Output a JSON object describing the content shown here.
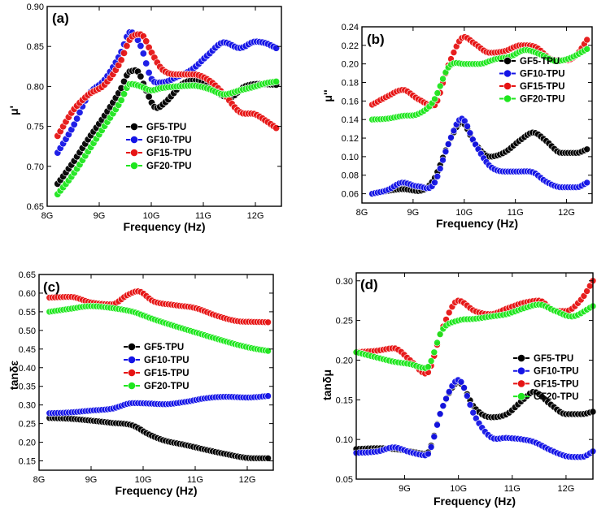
{
  "colors": {
    "GF5-TPU": "#000000",
    "GF10-TPU": "#1414e6",
    "GF15-TPU": "#e61414",
    "GF20-TPU": "#1ee61e"
  },
  "chart_data": [
    {
      "type": "line",
      "panel": "(a)",
      "title": "",
      "xlabel": "Frequency (Hz)",
      "ylabel": "μ'",
      "xlim": [
        8.0,
        12.5
      ],
      "ylim": [
        0.65,
        0.9
      ],
      "xticks": [
        8,
        9,
        10,
        11,
        12
      ],
      "xtick_labels": [
        "8G",
        "9G",
        "10G",
        "11G",
        "12G"
      ],
      "yticks": [
        0.65,
        0.7,
        0.75,
        0.8,
        0.85,
        0.9
      ],
      "ytick_labels": [
        "0.65",
        "0.70",
        "0.75",
        "0.80",
        "0.85",
        "0.90"
      ],
      "legend": [
        "GF5-TPU",
        "GF10-TPU",
        "GF15-TPU",
        "GF20-TPU"
      ],
      "legend_position": "center-left",
      "series": [
        {
          "name": "GF5-TPU",
          "x": [
            8.2,
            8.5,
            8.8,
            9.1,
            9.4,
            9.6,
            9.75,
            9.9,
            10.1,
            10.3,
            10.6,
            10.9,
            11.2,
            11.5,
            11.8,
            12.1,
            12.4
          ],
          "y": [
            0.678,
            0.705,
            0.735,
            0.763,
            0.795,
            0.819,
            0.818,
            0.795,
            0.773,
            0.782,
            0.803,
            0.808,
            0.795,
            0.786,
            0.8,
            0.803,
            0.802
          ]
        },
        {
          "name": "GF10-TPU",
          "x": [
            8.2,
            8.5,
            8.8,
            9.1,
            9.4,
            9.6,
            9.8,
            10.0,
            10.2,
            10.5,
            10.8,
            11.1,
            11.4,
            11.7,
            12.0,
            12.2,
            12.4
          ],
          "y": [
            0.717,
            0.75,
            0.79,
            0.808,
            0.84,
            0.868,
            0.85,
            0.81,
            0.805,
            0.812,
            0.822,
            0.84,
            0.855,
            0.848,
            0.856,
            0.854,
            0.848
          ]
        },
        {
          "name": "GF15-TPU",
          "x": [
            8.2,
            8.5,
            8.8,
            9.1,
            9.4,
            9.6,
            9.8,
            10.0,
            10.2,
            10.5,
            10.8,
            11.1,
            11.4,
            11.7,
            12.0,
            12.2,
            12.4
          ],
          "y": [
            0.738,
            0.77,
            0.79,
            0.802,
            0.83,
            0.86,
            0.865,
            0.843,
            0.822,
            0.815,
            0.815,
            0.808,
            0.79,
            0.768,
            0.765,
            0.757,
            0.748
          ]
        },
        {
          "name": "GF20-TPU",
          "x": [
            8.2,
            8.5,
            8.8,
            9.1,
            9.4,
            9.6,
            9.8,
            10.0,
            10.2,
            10.5,
            10.8,
            11.1,
            11.4,
            11.7,
            12.0,
            12.2,
            12.4
          ],
          "y": [
            0.665,
            0.69,
            0.72,
            0.75,
            0.78,
            0.803,
            0.8,
            0.795,
            0.798,
            0.8,
            0.801,
            0.797,
            0.79,
            0.795,
            0.8,
            0.804,
            0.806
          ]
        }
      ]
    },
    {
      "type": "line",
      "panel": "(b)",
      "title": "",
      "xlabel": "Frequency (Hz)",
      "ylabel": "μ''",
      "xlim": [
        8.0,
        12.5
      ],
      "ylim": [
        0.05,
        0.24
      ],
      "xticks": [
        8,
        9,
        10,
        11,
        12
      ],
      "xtick_labels": [
        "8G",
        "9G",
        "10G",
        "11G",
        "12G"
      ],
      "yticks": [
        0.06,
        0.08,
        0.1,
        0.12,
        0.14,
        0.16,
        0.18,
        0.2,
        0.22,
        0.24
      ],
      "ytick_labels": [
        "0.06",
        "0.08",
        "0.10",
        "0.12",
        "0.14",
        "0.16",
        "0.18",
        "0.20",
        "0.22",
        "0.24"
      ],
      "legend": [
        "GF5-TPU",
        "GF10-TPU",
        "GF15-TPU",
        "GF20-TPU"
      ],
      "legend_position": "center-right",
      "series": [
        {
          "name": "GF5-TPU",
          "x": [
            8.2,
            8.5,
            8.8,
            9.1,
            9.4,
            9.7,
            9.95,
            10.2,
            10.5,
            10.8,
            11.1,
            11.35,
            11.6,
            11.9,
            12.2,
            12.4
          ],
          "y": [
            0.06,
            0.063,
            0.065,
            0.063,
            0.075,
            0.115,
            0.137,
            0.115,
            0.1,
            0.105,
            0.118,
            0.126,
            0.117,
            0.104,
            0.104,
            0.108
          ]
        },
        {
          "name": "GF10-TPU",
          "x": [
            8.2,
            8.5,
            8.8,
            9.1,
            9.4,
            9.7,
            9.95,
            10.2,
            10.5,
            10.8,
            11.1,
            11.35,
            11.6,
            11.9,
            12.2,
            12.4
          ],
          "y": [
            0.06,
            0.064,
            0.072,
            0.068,
            0.07,
            0.115,
            0.141,
            0.115,
            0.09,
            0.084,
            0.084,
            0.083,
            0.073,
            0.067,
            0.067,
            0.072
          ]
        },
        {
          "name": "GF15-TPU",
          "x": [
            8.2,
            8.5,
            8.8,
            9.1,
            9.4,
            9.7,
            10.0,
            10.2,
            10.5,
            10.8,
            11.1,
            11.4,
            11.7,
            12.0,
            12.2,
            12.4
          ],
          "y": [
            0.156,
            0.165,
            0.172,
            0.162,
            0.155,
            0.2,
            0.229,
            0.222,
            0.212,
            0.214,
            0.22,
            0.218,
            0.205,
            0.204,
            0.21,
            0.226
          ]
        },
        {
          "name": "GF20-TPU",
          "x": [
            8.2,
            8.5,
            8.8,
            9.1,
            9.4,
            9.7,
            10.0,
            10.3,
            10.6,
            10.9,
            11.2,
            11.5,
            11.8,
            12.1,
            12.4
          ],
          "y": [
            0.14,
            0.141,
            0.144,
            0.146,
            0.16,
            0.197,
            0.2,
            0.2,
            0.205,
            0.208,
            0.215,
            0.21,
            0.203,
            0.207,
            0.216
          ]
        }
      ]
    },
    {
      "type": "line",
      "panel": "(c)",
      "title": "",
      "xlabel": "Frequency (Hz)",
      "ylabel": "tanδε",
      "xlim": [
        8.0,
        12.5
      ],
      "ylim": [
        0.125,
        0.65
      ],
      "xticks": [
        8,
        9,
        10,
        11,
        12
      ],
      "xtick_labels": [
        "8G",
        "9G",
        "10G",
        "11G",
        "12G"
      ],
      "yticks": [
        0.15,
        0.2,
        0.25,
        0.3,
        0.35,
        0.4,
        0.45,
        0.5,
        0.55,
        0.6,
        0.65
      ],
      "ytick_labels": [
        "0.15",
        "0.20",
        "0.25",
        "0.30",
        "0.35",
        "0.40",
        "0.45",
        "0.50",
        "0.55",
        "0.60",
        "0.65"
      ],
      "legend": [
        "GF5-TPU",
        "GF10-TPU",
        "GF15-TPU",
        "GF20-TPU"
      ],
      "legend_position": "center",
      "series": [
        {
          "name": "GF5-TPU",
          "x": [
            8.2,
            8.6,
            9.0,
            9.4,
            9.8,
            10.1,
            10.4,
            10.8,
            11.2,
            11.6,
            12.0,
            12.4
          ],
          "y": [
            0.265,
            0.263,
            0.258,
            0.252,
            0.245,
            0.222,
            0.205,
            0.193,
            0.18,
            0.168,
            0.158,
            0.157
          ]
        },
        {
          "name": "GF10-TPU",
          "x": [
            8.2,
            8.6,
            9.0,
            9.4,
            9.8,
            10.1,
            10.4,
            10.8,
            11.2,
            11.6,
            12.0,
            12.4
          ],
          "y": [
            0.278,
            0.28,
            0.285,
            0.29,
            0.305,
            0.304,
            0.302,
            0.308,
            0.318,
            0.322,
            0.32,
            0.324
          ]
        },
        {
          "name": "GF15-TPU",
          "x": [
            8.2,
            8.6,
            9.0,
            9.4,
            9.7,
            9.9,
            10.2,
            10.6,
            11.0,
            11.4,
            11.8,
            12.1,
            12.4
          ],
          "y": [
            0.588,
            0.59,
            0.575,
            0.57,
            0.595,
            0.605,
            0.578,
            0.568,
            0.56,
            0.54,
            0.525,
            0.523,
            0.522
          ]
        },
        {
          "name": "GF20-TPU",
          "x": [
            8.2,
            8.6,
            9.0,
            9.4,
            9.8,
            10.2,
            10.6,
            11.0,
            11.4,
            11.8,
            12.1,
            12.4
          ],
          "y": [
            0.55,
            0.558,
            0.565,
            0.56,
            0.55,
            0.53,
            0.512,
            0.495,
            0.478,
            0.462,
            0.452,
            0.445
          ]
        }
      ]
    },
    {
      "type": "line",
      "panel": "(d)",
      "title": "",
      "xlabel": "Frequency (Hz)",
      "ylabel": "tanδμ",
      "xlim": [
        8.1,
        12.5
      ],
      "ylim": [
        0.05,
        0.31
      ],
      "xticks": [
        9,
        10,
        11,
        12
      ],
      "xtick_labels": [
        "9G",
        "10G",
        "11G",
        "12G"
      ],
      "yticks": [
        0.05,
        0.1,
        0.15,
        0.2,
        0.25,
        0.3
      ],
      "ytick_labels": [
        "0.05",
        "0.10",
        "0.15",
        "0.20",
        "0.25",
        "0.30"
      ],
      "legend": [
        "GF5-TPU",
        "GF10-TPU",
        "GF15-TPU",
        "GF20-TPU"
      ],
      "legend_position": "center-right",
      "series": [
        {
          "name": "GF5-TPU",
          "x": [
            8.1,
            8.5,
            8.8,
            9.1,
            9.4,
            9.7,
            10.0,
            10.3,
            10.6,
            10.9,
            11.2,
            11.4,
            11.7,
            12.0,
            12.3,
            12.5
          ],
          "y": [
            0.088,
            0.089,
            0.088,
            0.085,
            0.082,
            0.14,
            0.172,
            0.14,
            0.128,
            0.132,
            0.15,
            0.16,
            0.145,
            0.132,
            0.132,
            0.135
          ]
        },
        {
          "name": "GF10-TPU",
          "x": [
            8.1,
            8.5,
            8.8,
            9.1,
            9.4,
            9.7,
            10.0,
            10.3,
            10.6,
            10.9,
            11.2,
            11.4,
            11.7,
            12.0,
            12.3,
            12.5
          ],
          "y": [
            0.083,
            0.085,
            0.09,
            0.084,
            0.08,
            0.14,
            0.175,
            0.13,
            0.103,
            0.102,
            0.1,
            0.097,
            0.087,
            0.079,
            0.078,
            0.085
          ]
        },
        {
          "name": "GF15-TPU",
          "x": [
            8.1,
            8.5,
            8.8,
            9.1,
            9.4,
            9.7,
            10.0,
            10.3,
            10.6,
            10.9,
            11.2,
            11.5,
            11.8,
            12.0,
            12.3,
            12.5
          ],
          "y": [
            0.21,
            0.212,
            0.215,
            0.2,
            0.183,
            0.24,
            0.275,
            0.262,
            0.258,
            0.265,
            0.272,
            0.275,
            0.262,
            0.262,
            0.278,
            0.3
          ]
        },
        {
          "name": "GF20-TPU",
          "x": [
            8.1,
            8.5,
            8.8,
            9.1,
            9.4,
            9.7,
            10.0,
            10.3,
            10.6,
            10.9,
            11.2,
            11.5,
            11.8,
            12.1,
            12.5
          ],
          "y": [
            0.21,
            0.203,
            0.198,
            0.195,
            0.19,
            0.238,
            0.25,
            0.252,
            0.255,
            0.258,
            0.265,
            0.27,
            0.262,
            0.255,
            0.268
          ]
        }
      ]
    }
  ]
}
